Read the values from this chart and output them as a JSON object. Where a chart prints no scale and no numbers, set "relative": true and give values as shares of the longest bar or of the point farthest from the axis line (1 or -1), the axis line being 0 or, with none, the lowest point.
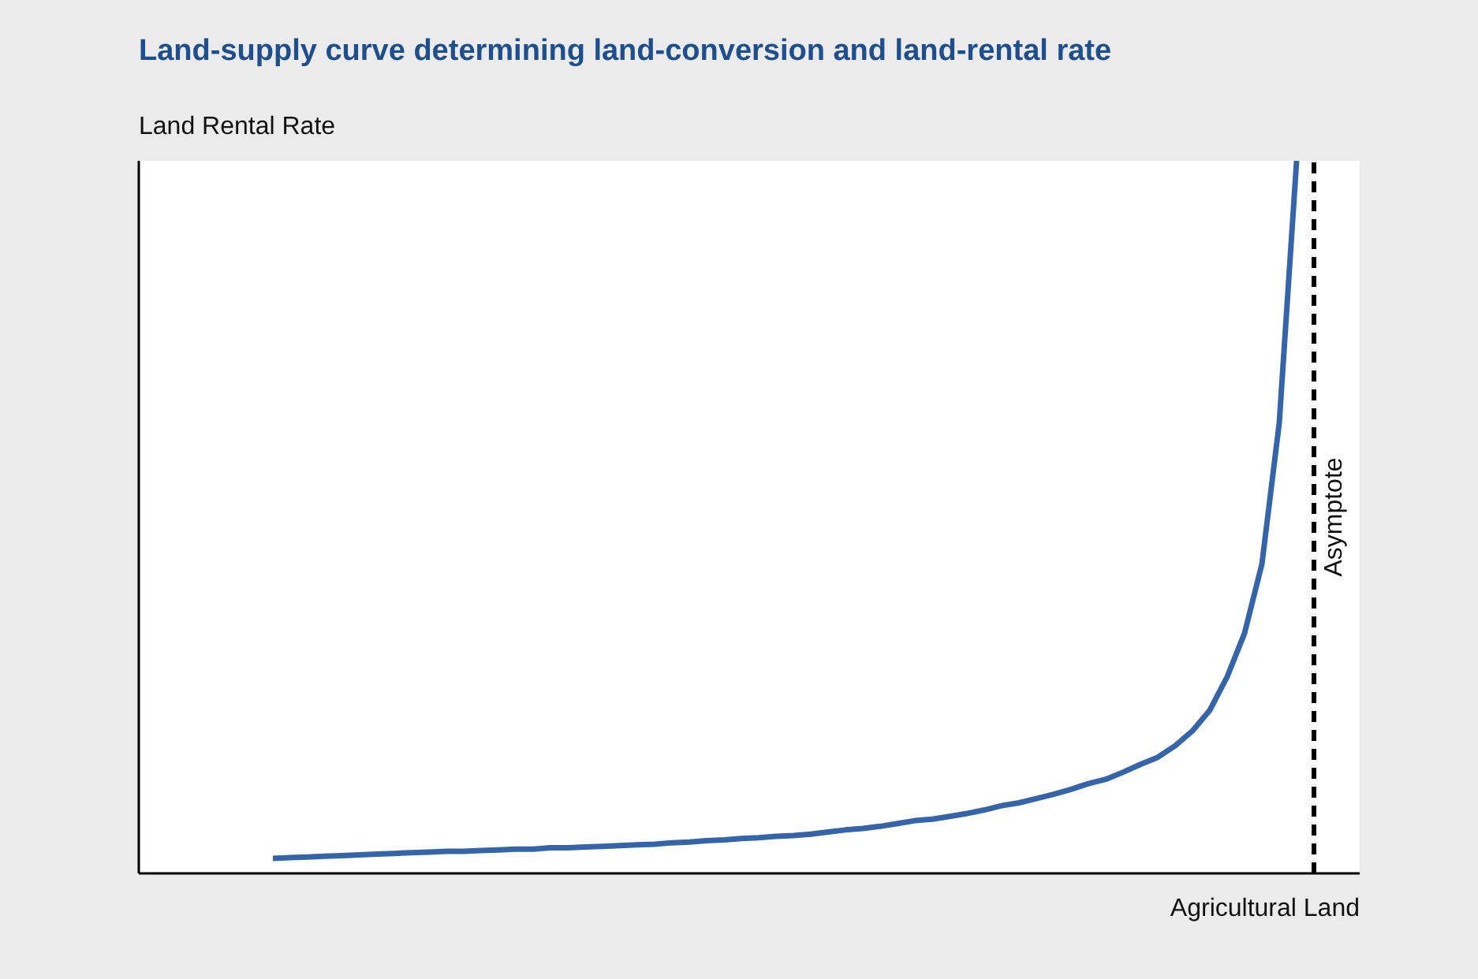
{
  "chart_data": {
    "type": "line",
    "title": "Land-supply curve determining land-conversion and land-rental rate",
    "xlabel": "Agricultural Land",
    "ylabel": "Land Rental Rate",
    "relative": true,
    "categories": [
      null,
      null,
      null,
      null,
      null,
      null,
      null,
      null,
      null,
      null,
      null,
      null,
      null,
      null,
      null,
      null,
      null,
      null,
      null,
      null,
      null,
      null,
      null,
      null,
      null,
      null,
      null,
      null,
      null,
      null,
      null,
      null,
      null,
      null,
      null,
      null,
      null,
      null,
      null,
      null,
      null,
      null,
      null,
      null,
      null,
      null,
      null,
      null,
      null,
      null,
      null,
      null,
      null,
      null,
      null,
      null,
      null,
      null,
      null,
      null,
      null
    ],
    "series": [
      {
        "color": "#3565a8",
        "values": [
          0.021,
          0.022,
          0.023,
          0.024,
          0.025,
          0.026,
          0.027,
          0.028,
          0.029,
          0.03,
          0.031,
          0.031,
          0.032,
          0.033,
          0.034,
          0.034,
          0.036,
          0.036,
          0.037,
          0.038,
          0.039,
          0.04,
          0.041,
          0.043,
          0.044,
          0.046,
          0.047,
          0.049,
          0.05,
          0.052,
          0.053,
          0.055,
          0.058,
          0.061,
          0.063,
          0.066,
          0.07,
          0.074,
          0.076,
          0.08,
          0.084,
          0.089,
          0.095,
          0.099,
          0.105,
          0.111,
          0.118,
          0.126,
          0.132,
          0.142,
          0.153,
          0.163,
          0.179,
          0.2,
          0.229,
          0.276,
          0.337,
          0.434,
          0.632,
          1,
          null
        ]
      }
    ],
    "ref_lines": [
      {
        "axis": "x",
        "label": "Asymptote",
        "color": "#000000",
        "line_style": "dashed"
      }
    ]
  }
}
